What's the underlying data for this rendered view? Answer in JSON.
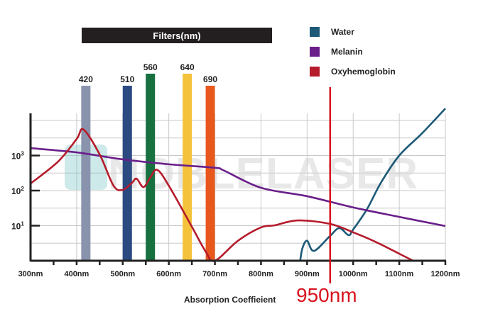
{
  "chart_data": {
    "type": "line",
    "title": "Filters(nm)",
    "xlabel": "Absorption Coeffieient",
    "ylabel": "",
    "xlim": [
      300,
      1200
    ],
    "ylim_log10": [
      0,
      4.2
    ],
    "y_scale": "log",
    "grid": true,
    "legend_position": "top-right",
    "x_ticks": [
      "300nm",
      "400nm",
      "500nm",
      "600nm",
      "700nm",
      "800nm",
      "900nm",
      "1000nm",
      "1100nm",
      "1200nm"
    ],
    "x_tick_values": [
      300,
      400,
      500,
      600,
      700,
      800,
      900,
      1000,
      1100,
      1200
    ],
    "y_ticks": [
      {
        "base": "10",
        "exp": "3",
        "value": 1000
      },
      {
        "base": "10",
        "exp": "2",
        "value": 100
      },
      {
        "base": "10",
        "exp": "1",
        "value": 10
      }
    ],
    "filters": [
      {
        "label": "420",
        "nm": 420,
        "color": "#8a93ad",
        "height_rank": "low"
      },
      {
        "label": "510",
        "nm": 510,
        "color": "#2b4a82",
        "height_rank": "low"
      },
      {
        "label": "560",
        "nm": 560,
        "color": "#16703f",
        "height_rank": "high"
      },
      {
        "label": "640",
        "nm": 640,
        "color": "#f5c33b",
        "height_rank": "high"
      },
      {
        "label": "690",
        "nm": 690,
        "color": "#e8581d",
        "height_rank": "low"
      }
    ],
    "series": [
      {
        "name": "Water",
        "color": "#1d5a78",
        "x": [
          885,
          890,
          900,
          915,
          950,
          970,
          990,
          1000,
          1030,
          1060,
          1100,
          1150,
          1200
        ],
        "y_log10": [
          0,
          0.36,
          0.57,
          0.28,
          0.71,
          0.93,
          0.73,
          0.89,
          1.47,
          2.22,
          3.0,
          3.64,
          4.34
        ]
      },
      {
        "name": "Melanin",
        "color": "#6a1f8a",
        "x": [
          300,
          400,
          500,
          600,
          700,
          720,
          800,
          900,
          1000,
          1100,
          1200
        ],
        "y_log10": [
          3.21,
          3.09,
          2.89,
          2.75,
          2.65,
          2.57,
          2.08,
          1.84,
          1.52,
          1.25,
          0.99
        ]
      },
      {
        "name": "Oxyhemoglobin",
        "color": "#b51c2c",
        "x": [
          300,
          360,
          400,
          415,
          450,
          480,
          500,
          520,
          530,
          545,
          560,
          575,
          600,
          650,
          680,
          700,
          750,
          800,
          830,
          880,
          950,
          1000,
          1050,
          1100,
          1130
        ],
        "y_log10": [
          2.2,
          2.83,
          3.47,
          3.74,
          3.03,
          2.14,
          2.02,
          2.22,
          2.34,
          2.1,
          2.38,
          2.59,
          2.14,
          0.97,
          0.26,
          0.0,
          0.57,
          0.95,
          1.01,
          1.15,
          1.05,
          0.81,
          0.53,
          0.2,
          0
        ]
      }
    ],
    "marker_line": {
      "nm": 950,
      "label": "950nm",
      "color": "#d8121e"
    },
    "watermark": "NOBLELASER"
  }
}
